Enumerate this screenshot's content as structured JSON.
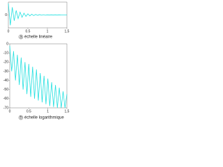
{
  "chart_data": [
    {
      "type": "line",
      "label": "a",
      "caption": "échelle linéaire",
      "color": "#22e0e0",
      "x": [
        0,
        0.05,
        0.1,
        0.15,
        0.2,
        0.25,
        0.3,
        0.35,
        0.4,
        0.45,
        0.5,
        0.55,
        0.6,
        0.65,
        0.7,
        0.75,
        0.8,
        0.85,
        0.9,
        0.95,
        1,
        1.05,
        1.1,
        1.15,
        1.2,
        1.25,
        1.3,
        1.35,
        1.4,
        1.45,
        1.5
      ],
      "values": [
        0.9,
        -0.8,
        0.6,
        -0.45,
        0.35,
        -0.28,
        0.22,
        -0.18,
        0.14,
        -0.11,
        0.09,
        -0.07,
        0.06,
        -0.05,
        0.04,
        -0.03,
        0.03,
        -0.02,
        0.02,
        -0.02,
        0.01,
        -0.01,
        0.01,
        -0.01,
        0.01,
        -0.01,
        0.01,
        0,
        0,
        0,
        0
      ],
      "xlim": [
        0,
        1.5
      ],
      "xticks": [
        0,
        0.5,
        1,
        {
          "value": 1.5,
          "label": "1,5"
        }
      ],
      "ylim": [
        -1,
        1
      ],
      "yticks": [
        0
      ]
    },
    {
      "type": "line",
      "label": "b",
      "caption": "échelle logarithmique",
      "color": "#22e0e0",
      "x": [
        0,
        0.05,
        0.1,
        0.15,
        0.2,
        0.25,
        0.3,
        0.35,
        0.4,
        0.45,
        0.5,
        0.55,
        0.6,
        0.65,
        0.7,
        0.75,
        0.8,
        0.85,
        0.9,
        0.95,
        1,
        1.05,
        1.1,
        1.15,
        1.2,
        1.25,
        1.3,
        1.35,
        1.4,
        1.45,
        1.5
      ],
      "values": [
        -2,
        -30,
        -8,
        -40,
        -12,
        -45,
        -15,
        -50,
        -20,
        -55,
        -22,
        -58,
        -25,
        -60,
        -28,
        -62,
        -32,
        -64,
        -35,
        -66,
        -38,
        -68,
        -42,
        -69,
        -45,
        -70,
        -48,
        -70,
        -52,
        -70,
        -55
      ],
      "xlim": [
        0,
        1.5
      ],
      "xticks": [
        0,
        0.5,
        1,
        {
          "value": 1.5,
          "label": "1,5"
        }
      ],
      "ylim": [
        -70,
        0
      ],
      "yticks": [
        0,
        -10,
        -20,
        -30,
        -40,
        -50,
        -60,
        -70
      ]
    }
  ]
}
